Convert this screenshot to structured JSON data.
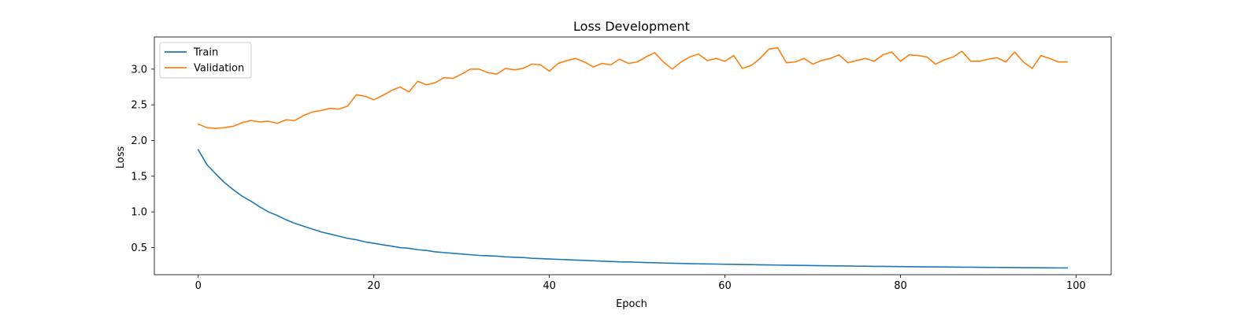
{
  "chart_data": {
    "type": "line",
    "title": "Loss Development",
    "xlabel": "Epoch",
    "ylabel": "Loss",
    "xlim": [
      -5,
      104
    ],
    "ylim": [
      0.12,
      3.45
    ],
    "xticks": [
      0,
      20,
      40,
      60,
      80,
      100
    ],
    "yticks": [
      0.5,
      1.0,
      1.5,
      2.0,
      2.5,
      3.0
    ],
    "xtick_labels": [
      "0",
      "20",
      "40",
      "60",
      "80",
      "100"
    ],
    "ytick_labels": [
      "0.5",
      "1.0",
      "1.5",
      "2.0",
      "2.5",
      "3.0"
    ],
    "grid": false,
    "legend_position": "top-left",
    "x": [
      0,
      1,
      2,
      3,
      4,
      5,
      6,
      7,
      8,
      9,
      10,
      11,
      12,
      13,
      14,
      15,
      16,
      17,
      18,
      19,
      20,
      21,
      22,
      23,
      24,
      25,
      26,
      27,
      28,
      29,
      30,
      31,
      32,
      33,
      34,
      35,
      36,
      37,
      38,
      39,
      40,
      41,
      42,
      43,
      44,
      45,
      46,
      47,
      48,
      49,
      50,
      51,
      52,
      53,
      54,
      55,
      56,
      57,
      58,
      59,
      60,
      61,
      62,
      63,
      64,
      65,
      66,
      67,
      68,
      69,
      70,
      71,
      72,
      73,
      74,
      75,
      76,
      77,
      78,
      79,
      80,
      81,
      82,
      83,
      84,
      85,
      86,
      87,
      88,
      89,
      90,
      91,
      92,
      93,
      94,
      95,
      96,
      97,
      98,
      99
    ],
    "series": [
      {
        "name": "Train",
        "color": "#1f77b4",
        "values": [
          1.87,
          1.66,
          1.53,
          1.41,
          1.31,
          1.22,
          1.15,
          1.07,
          1.0,
          0.95,
          0.89,
          0.84,
          0.8,
          0.76,
          0.72,
          0.69,
          0.66,
          0.63,
          0.61,
          0.58,
          0.56,
          0.54,
          0.52,
          0.5,
          0.49,
          0.47,
          0.46,
          0.44,
          0.43,
          0.42,
          0.41,
          0.4,
          0.39,
          0.385,
          0.38,
          0.37,
          0.365,
          0.36,
          0.35,
          0.345,
          0.34,
          0.335,
          0.33,
          0.325,
          0.32,
          0.315,
          0.31,
          0.305,
          0.3,
          0.298,
          0.295,
          0.29,
          0.287,
          0.284,
          0.281,
          0.278,
          0.275,
          0.273,
          0.271,
          0.269,
          0.267,
          0.265,
          0.263,
          0.261,
          0.259,
          0.257,
          0.255,
          0.253,
          0.252,
          0.25,
          0.248,
          0.246,
          0.245,
          0.243,
          0.242,
          0.24,
          0.239,
          0.237,
          0.236,
          0.235,
          0.234,
          0.232,
          0.231,
          0.23,
          0.229,
          0.228,
          0.227,
          0.226,
          0.225,
          0.224,
          0.223,
          0.222,
          0.221,
          0.22,
          0.219,
          0.218,
          0.217,
          0.216,
          0.215,
          0.214
        ]
      },
      {
        "name": "Validation",
        "color": "#ff7f0e",
        "values": [
          2.23,
          2.18,
          2.17,
          2.18,
          2.2,
          2.25,
          2.28,
          2.26,
          2.27,
          2.24,
          2.29,
          2.28,
          2.35,
          2.4,
          2.42,
          2.45,
          2.44,
          2.48,
          2.64,
          2.62,
          2.57,
          2.63,
          2.7,
          2.75,
          2.68,
          2.83,
          2.78,
          2.81,
          2.88,
          2.87,
          2.93,
          3.0,
          3.0,
          2.95,
          2.93,
          3.01,
          2.99,
          3.01,
          3.07,
          3.06,
          2.97,
          3.08,
          3.12,
          3.15,
          3.1,
          3.03,
          3.08,
          3.06,
          3.14,
          3.08,
          3.1,
          3.17,
          3.23,
          3.1,
          3.0,
          3.1,
          3.17,
          3.21,
          3.12,
          3.15,
          3.11,
          3.19,
          3.01,
          3.05,
          3.15,
          3.28,
          3.3,
          3.09,
          3.1,
          3.15,
          3.07,
          3.12,
          3.15,
          3.2,
          3.09,
          3.12,
          3.15,
          3.11,
          3.2,
          3.24,
          3.11,
          3.2,
          3.19,
          3.17,
          3.07,
          3.13,
          3.17,
          3.25,
          3.11,
          3.11,
          3.14,
          3.16,
          3.1,
          3.24,
          3.1,
          3.01,
          3.19,
          3.15,
          3.1,
          3.1
        ]
      }
    ]
  }
}
